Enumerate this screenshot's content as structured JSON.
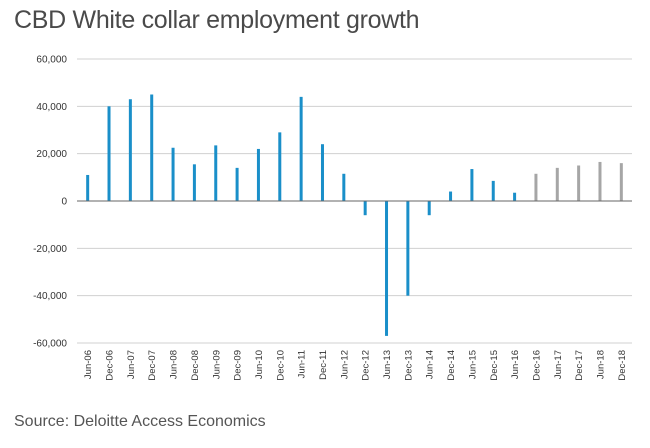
{
  "title": "CBD White collar employment growth",
  "source": "Source: Deloitte Access Economics",
  "colors": {
    "actual": "#1a8fc9",
    "forecast": "#a6a6a6",
    "grid": "#d0d0d0",
    "zero_line": "#666666"
  },
  "chart_data": {
    "type": "bar",
    "title": "CBD White collar employment growth",
    "xlabel": "",
    "ylabel": "",
    "ylim": [
      -60000,
      60000
    ],
    "yticks": [
      60000,
      40000,
      20000,
      0,
      -20000,
      -40000,
      -60000
    ],
    "ytick_labels": [
      "60,000",
      "40,000",
      "20,000",
      "0",
      "-20,000",
      "-40,000",
      "-60,000"
    ],
    "grid": true,
    "categories": [
      "Jun-06",
      "Dec-06",
      "Jun-07",
      "Dec-07",
      "Jun-08",
      "Dec-08",
      "Jun-09",
      "Dec-09",
      "Jun-10",
      "Dec-10",
      "Jun-11",
      "Dec-11",
      "Jun-12",
      "Dec-12",
      "Jun-13",
      "Dec-13",
      "Jun-14",
      "Dec-14",
      "Jun-15",
      "Dec-15",
      "Jun-16",
      "Dec-16",
      "Jun-17",
      "Dec-17",
      "Jun-18",
      "Dec-18"
    ],
    "values": [
      11000,
      40000,
      43000,
      45000,
      22500,
      15500,
      23500,
      14000,
      22000,
      29000,
      44000,
      24000,
      11500,
      -6000,
      -57000,
      -40000,
      -6000,
      4000,
      13500,
      8500,
      3500,
      11500,
      14000,
      15000,
      16500,
      16000
    ],
    "forecast_from": "Dec-16"
  }
}
